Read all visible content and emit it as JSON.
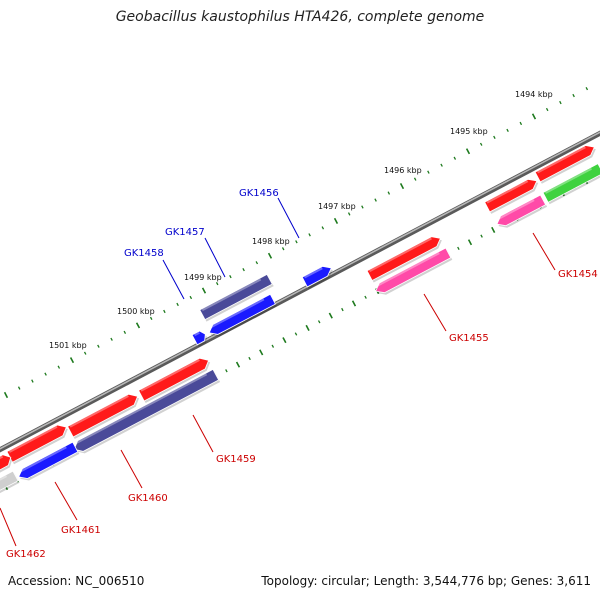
{
  "title": "Geobacillus kaustophilus HTA426, complete genome",
  "footer": {
    "accession": "Accession: NC_006510",
    "summary": "Topology: circular; Length: 3,544,776 bp; Genes: 3,611"
  },
  "kbp_labels": [
    "1494 kbp",
    "1495 kbp",
    "1496 kbp",
    "1497 kbp",
    "1498 kbp",
    "1499 kbp",
    "1500 kbp",
    "1501 kbp"
  ],
  "gene_labels": {
    "forward": [
      "GK1456",
      "GK1457",
      "GK1458"
    ],
    "reverse": [
      "GK1454",
      "GK1455",
      "GK1459",
      "GK1460",
      "GK1461",
      "GK1462"
    ]
  },
  "colors": {
    "forward_label": "#0000cc",
    "reverse_label": "#cc0000",
    "backbone": "#8c8c8c",
    "tick": "#1e7a1e",
    "red": "#ff1a1a",
    "pink": "#ff4aa8",
    "blue": "#1a1aff",
    "navy": "#4a4a99",
    "green": "#3fd23f",
    "gray": "#cfcfcf"
  }
}
